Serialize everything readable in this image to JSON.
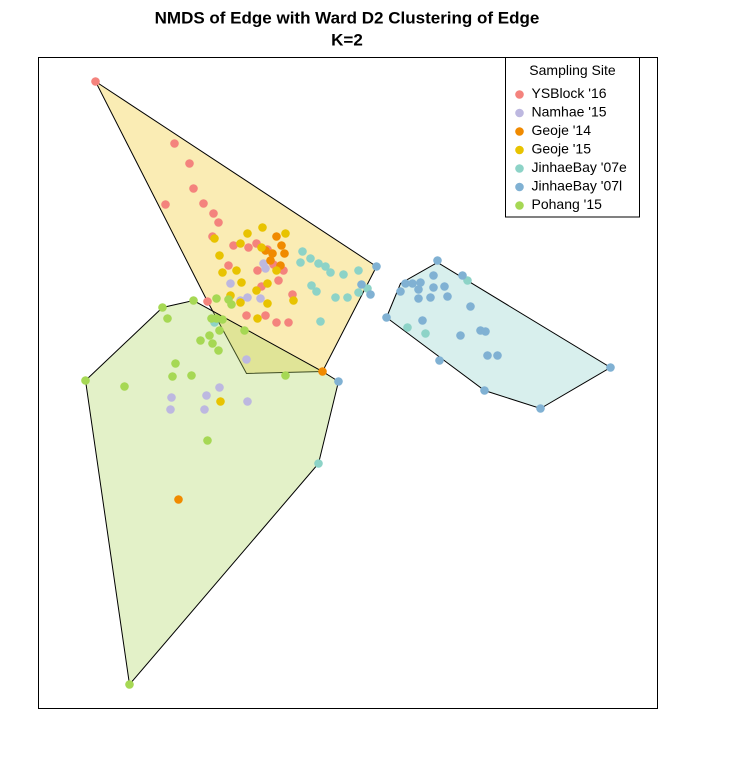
{
  "chart_data": {
    "type": "scatter",
    "title": "NMDS of Edge with Ward D2 Clustering of Edge",
    "subtitle": "K=2",
    "xlim": [
      0,
      619
    ],
    "ylim": [
      0,
      651
    ],
    "legend": "topright",
    "legend_title": "Sampling Site",
    "hulls": [
      {
        "color": "#f0c828",
        "x": [
          57,
          338,
          284,
          208,
          169
        ],
        "y": [
          627,
          442,
          337,
          335,
          407
        ]
      },
      {
        "color": "#b0d860",
        "x": [
          47,
          124,
          155,
          284,
          300,
          280,
          91
        ],
        "y": [
          328,
          401,
          408,
          337,
          327,
          245,
          24
        ]
      },
      {
        "color": "#8fd0cc",
        "x": [
          348,
          362,
          399,
          572,
          502,
          446
        ],
        "y": [
          391,
          425,
          446,
          341,
          300,
          318
        ]
      }
    ],
    "series": [
      {
        "name": "YSBlock '16",
        "color": "#f4837d",
        "x": [
          57,
          136,
          151,
          155,
          127,
          165,
          175,
          180,
          174,
          195,
          210,
          218,
          235,
          245,
          229,
          223,
          254,
          190,
          208,
          227,
          238,
          250,
          169,
          219,
          240
        ],
        "y": [
          627,
          565,
          545,
          520,
          504,
          505,
          495,
          486,
          472,
          463,
          461,
          465,
          444,
          438,
          459,
          422,
          414,
          443,
          393,
          393,
          386,
          386,
          407,
          438,
          428
        ]
      },
      {
        "name": "Namhae '15",
        "color": "#bdb8e0",
        "x": [
          192,
          225,
          209,
          222,
          227,
          208,
          181,
          133,
          168,
          166,
          209,
          132,
          202
        ],
        "y": [
          425,
          445,
          411,
          410,
          440,
          349,
          321,
          311,
          313,
          299,
          307,
          299,
          408
        ]
      },
      {
        "name": "Geoje '14",
        "color": "#f08a00",
        "x": [
          238,
          234,
          246,
          242,
          232,
          284,
          140,
          227,
          243
        ],
        "y": [
          472,
          455,
          455,
          443,
          448,
          337,
          209,
          458,
          463
        ]
      },
      {
        "name": "Geoje '15",
        "color": "#e8c300",
        "x": [
          224,
          247,
          209,
          202,
          176,
          181,
          184,
          198,
          203,
          218,
          223,
          238,
          229,
          202,
          219,
          255,
          182,
          229,
          192
        ],
        "y": [
          481,
          475,
          475,
          465,
          470,
          453,
          436,
          438,
          426,
          418,
          461,
          438,
          425,
          406,
          390,
          408,
          307,
          405,
          413
        ]
      },
      {
        "name": "JinhaeBay '07e",
        "color": "#8dd3c7",
        "x": [
          264,
          272,
          280,
          287,
          292,
          305,
          320,
          262,
          273,
          278,
          297,
          309,
          320,
          329,
          282,
          369,
          387,
          429,
          280,
          176
        ],
        "y": [
          457,
          450,
          445,
          442,
          436,
          434,
          438,
          446,
          423,
          417,
          411,
          411,
          416,
          420,
          387,
          381,
          375,
          428,
          245,
          386
        ]
      },
      {
        "name": "JinhaeBay '07l",
        "color": "#80b1d3",
        "x": [
          338,
          323,
          332,
          300,
          348,
          362,
          367,
          374,
          380,
          380,
          382,
          395,
          392,
          399,
          395,
          406,
          409,
          424,
          432,
          442,
          422,
          447,
          449,
          459,
          401,
          446,
          502,
          572,
          384
        ],
        "y": [
          442,
          424,
          414,
          327,
          391,
          417,
          425,
          425,
          419,
          410,
          426,
          421,
          411,
          448,
          433,
          422,
          412,
          433,
          402,
          378,
          373,
          377,
          353,
          353,
          348,
          318,
          300,
          341,
          388
        ]
      },
      {
        "name": "Pohang '15",
        "color": "#a6d854",
        "x": [
          124,
          155,
          129,
          178,
          190,
          193,
          173,
          178,
          184,
          181,
          171,
          174,
          180,
          137,
          134,
          153,
          86,
          47,
          169,
          91,
          206,
          247,
          162
        ],
        "y": [
          401,
          408,
          390,
          410,
          409,
          404,
          390,
          390,
          389,
          378,
          373,
          365,
          358,
          345,
          332,
          333,
          322,
          328,
          268,
          24,
          378,
          333,
          368
        ]
      }
    ]
  }
}
